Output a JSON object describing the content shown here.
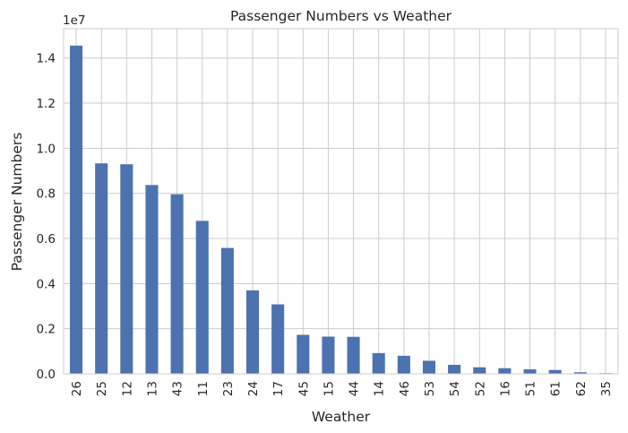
{
  "chart_data": {
    "type": "bar",
    "title": "Passenger Numbers vs Weather",
    "xlabel": "Weather",
    "ylabel": "Passenger Numbers",
    "y_offset_label": "1e7",
    "y_tick_labels": [
      "0.0",
      "0.2",
      "0.4",
      "0.6",
      "0.8",
      "1.0",
      "1.2",
      "1.4"
    ],
    "y_ticks": [
      0,
      2000000,
      4000000,
      6000000,
      8000000,
      10000000,
      12000000,
      14000000
    ],
    "ylim": [
      0,
      15300000
    ],
    "grid": true,
    "bar_color": "#4c72b0",
    "categories": [
      "26",
      "25",
      "12",
      "13",
      "43",
      "11",
      "23",
      "24",
      "17",
      "45",
      "15",
      "44",
      "14",
      "46",
      "53",
      "54",
      "52",
      "16",
      "51",
      "61",
      "62",
      "35"
    ],
    "values": [
      14550000,
      9330000,
      9290000,
      8370000,
      7960000,
      6780000,
      5580000,
      3700000,
      3080000,
      1730000,
      1650000,
      1640000,
      920000,
      800000,
      580000,
      400000,
      290000,
      250000,
      200000,
      170000,
      70000,
      30000
    ]
  }
}
